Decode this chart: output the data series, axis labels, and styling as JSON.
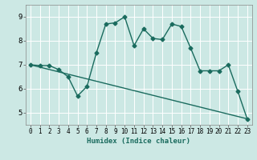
{
  "xlabel": "Humidex (Indice chaleur)",
  "ylabel": "",
  "xlim": [
    -0.5,
    23.5
  ],
  "ylim": [
    4.5,
    9.5
  ],
  "yticks": [
    5,
    6,
    7,
    8,
    9
  ],
  "xticks": [
    0,
    1,
    2,
    3,
    4,
    5,
    6,
    7,
    8,
    9,
    10,
    11,
    12,
    13,
    14,
    15,
    16,
    17,
    18,
    19,
    20,
    21,
    22,
    23
  ],
  "line1_x": [
    0,
    1,
    2,
    3,
    4,
    5,
    6,
    7,
    8,
    9,
    10,
    11,
    12,
    13,
    14,
    15,
    16,
    17,
    18,
    19,
    20,
    21,
    22,
    23
  ],
  "line1_y": [
    7.0,
    6.97,
    6.97,
    6.8,
    6.5,
    5.7,
    6.1,
    7.5,
    8.7,
    8.75,
    9.0,
    7.8,
    8.5,
    8.1,
    8.05,
    8.7,
    8.6,
    7.7,
    6.75,
    6.75,
    6.75,
    7.0,
    5.9,
    4.75
  ],
  "line2_x": [
    0,
    23
  ],
  "line2_y": [
    7.0,
    4.75
  ],
  "line_color": "#1a6b5e",
  "bg_color": "#cce8e4",
  "grid_color": "#ffffff",
  "marker": "D",
  "markersize": 2.5,
  "linewidth": 1.0
}
